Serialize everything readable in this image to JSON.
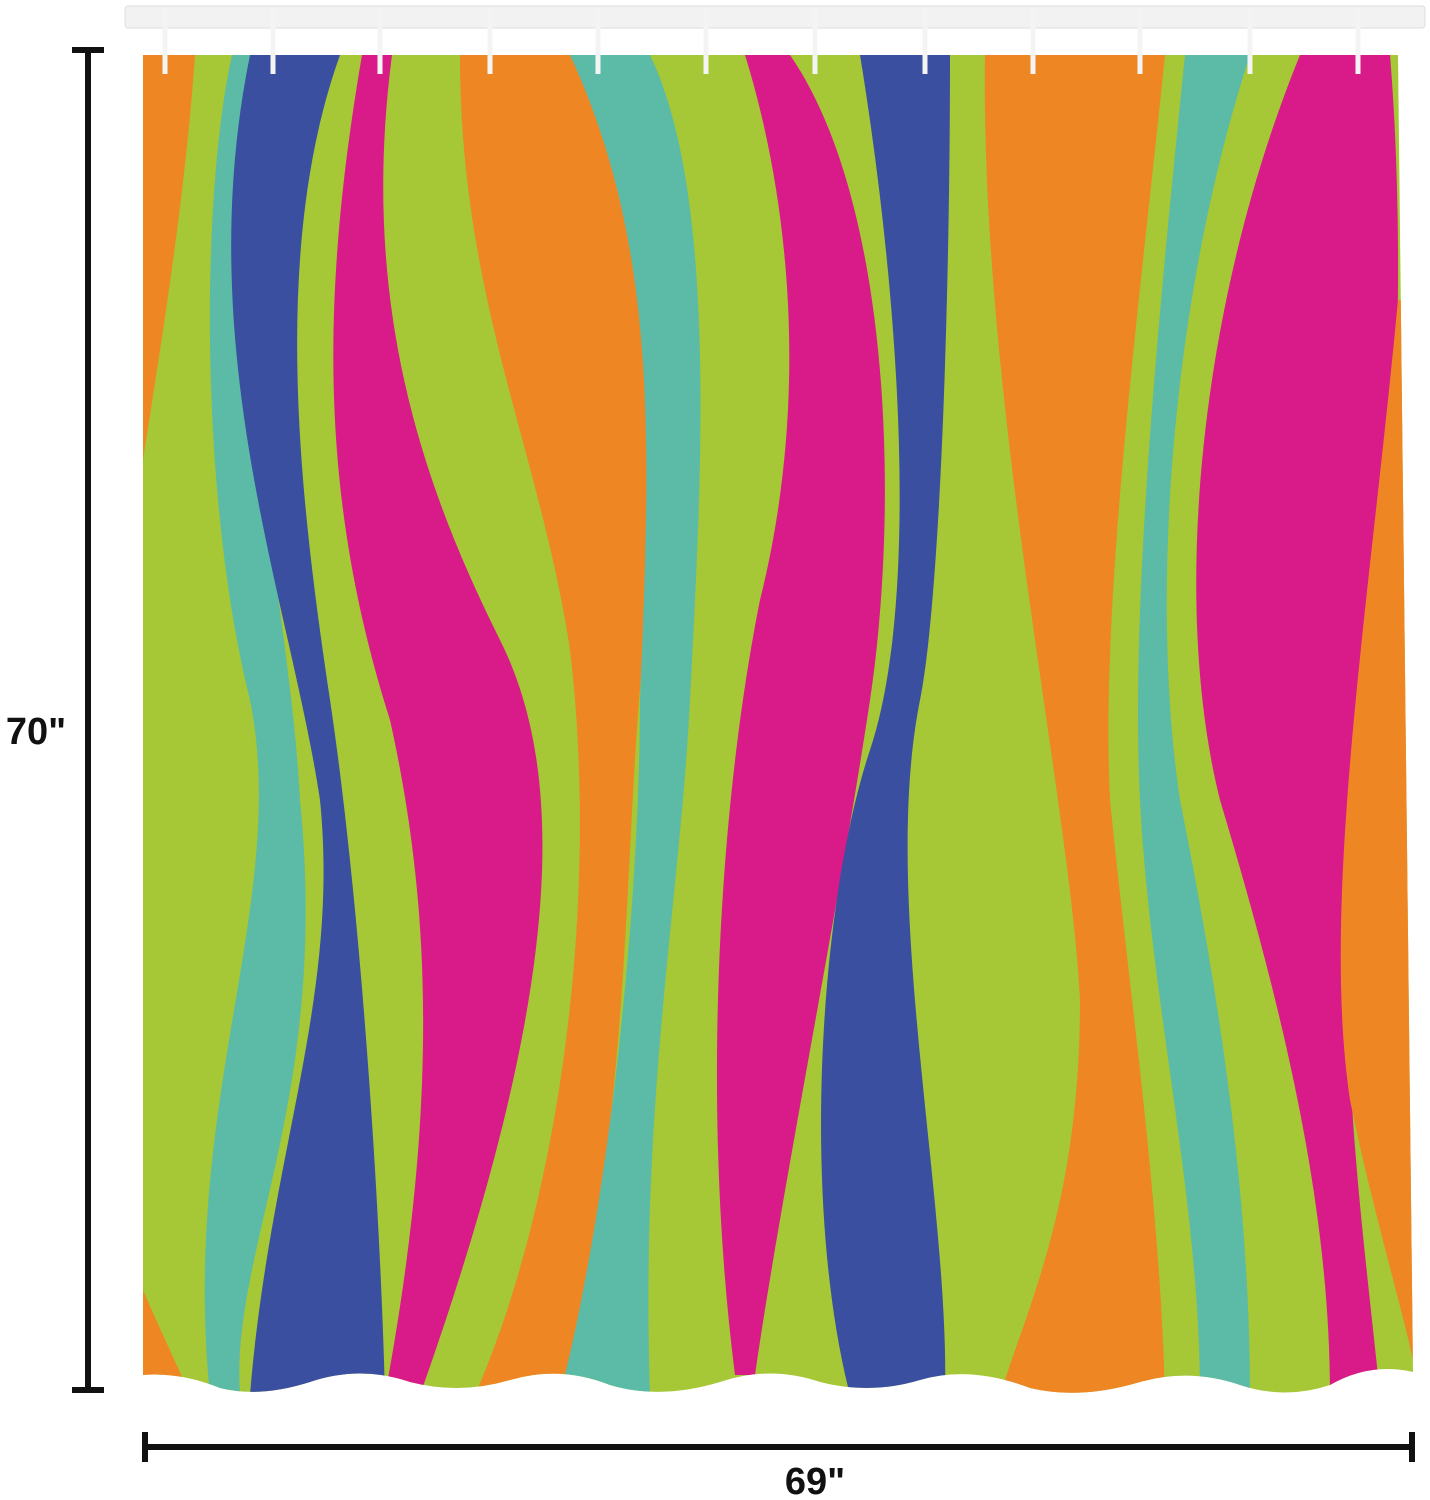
{
  "dimensions": {
    "height": "70\"",
    "width": "69\""
  }
}
